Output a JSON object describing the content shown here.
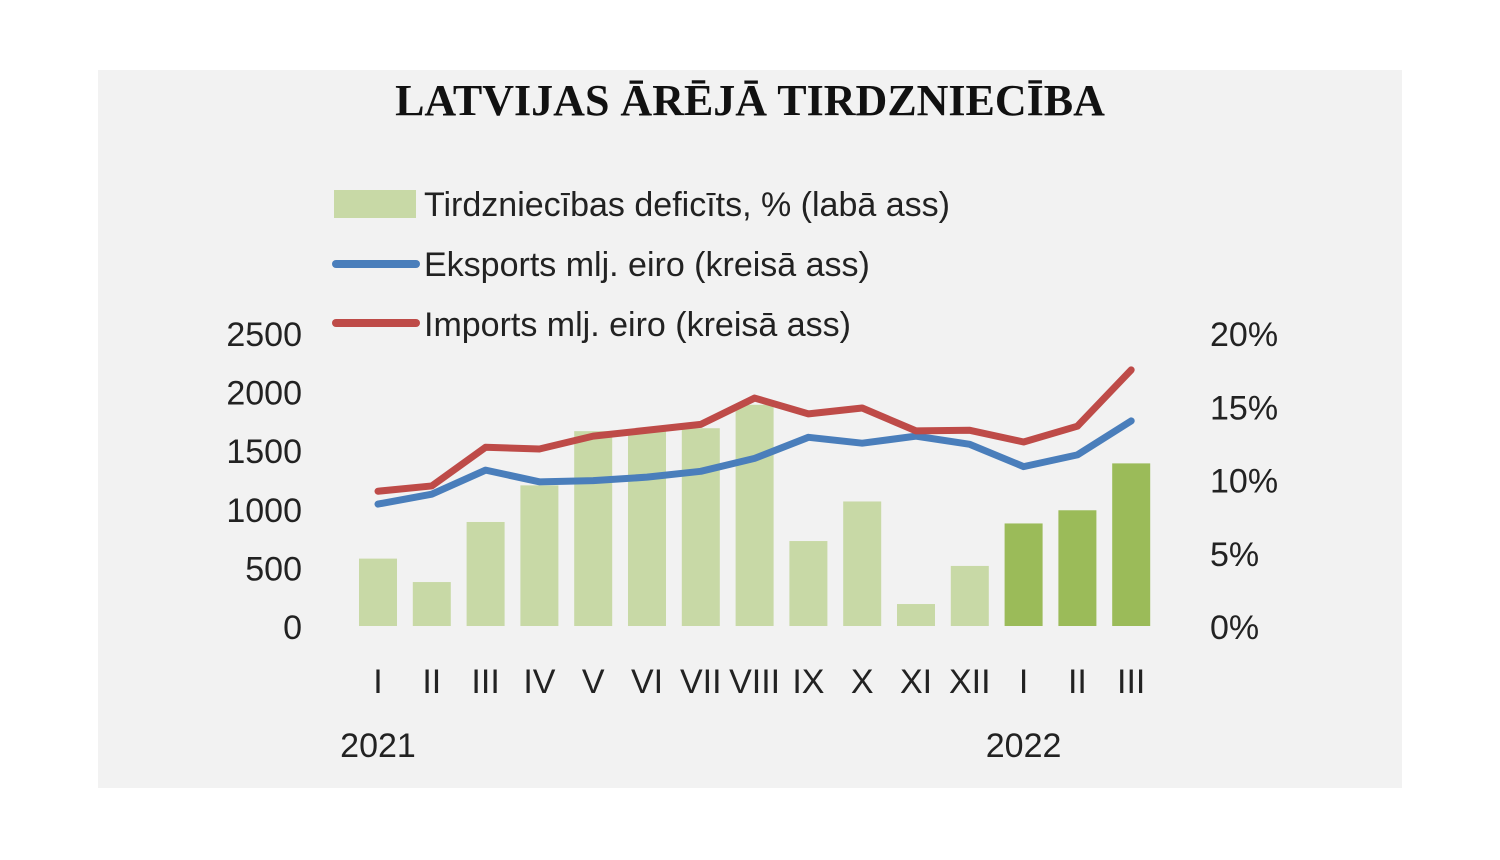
{
  "chart_data": {
    "type": "bar+line",
    "title": "LATVIJAS ĀRĒJĀ TIRDZNIECĪBA",
    "categories": [
      "I",
      "II",
      "III",
      "IV",
      "V",
      "VI",
      "VII",
      "VIII",
      "IX",
      "X",
      "XI",
      "XII",
      "I",
      "II",
      "III"
    ],
    "year_labels": [
      {
        "label": "2021",
        "index": 0
      },
      {
        "label": "2022",
        "index": 12
      }
    ],
    "left_axis": {
      "ticks": [
        "0",
        "500",
        "1000",
        "1500",
        "2000",
        "2500"
      ],
      "ylim": [
        0,
        2500
      ]
    },
    "right_axis": {
      "ticks": [
        "0%",
        "5%",
        "10%",
        "15%",
        "20%"
      ],
      "ylim": [
        0,
        20
      ]
    },
    "series": [
      {
        "name": "Tirdzniecības deficīts, % (labā ass)",
        "type": "bar",
        "axis": "right",
        "color": "#c8d9a6",
        "highlight_color": "#9bbb59",
        "highlight_from_index": 12,
        "values": [
          4.6,
          3.0,
          7.1,
          9.6,
          13.3,
          13.3,
          13.5,
          15.1,
          5.8,
          8.5,
          1.5,
          4.1,
          7.0,
          7.9,
          11.1
        ]
      },
      {
        "name": "Eksports mlj. eiro (kreisā ass)",
        "type": "line",
        "axis": "left",
        "color": "#4a7ebb",
        "values": [
          1040,
          1125,
          1330,
          1230,
          1240,
          1270,
          1320,
          1430,
          1610,
          1560,
          1620,
          1550,
          1360,
          1460,
          1750
        ]
      },
      {
        "name": "Imports mlj. eiro (kreisā ass)",
        "type": "line",
        "axis": "left",
        "color": "#be4b48",
        "values": [
          1150,
          1195,
          1525,
          1510,
          1620,
          1670,
          1720,
          1945,
          1810,
          1860,
          1665,
          1670,
          1570,
          1705,
          2185
        ]
      }
    ],
    "legend_position": "top-left",
    "grid": false
  }
}
